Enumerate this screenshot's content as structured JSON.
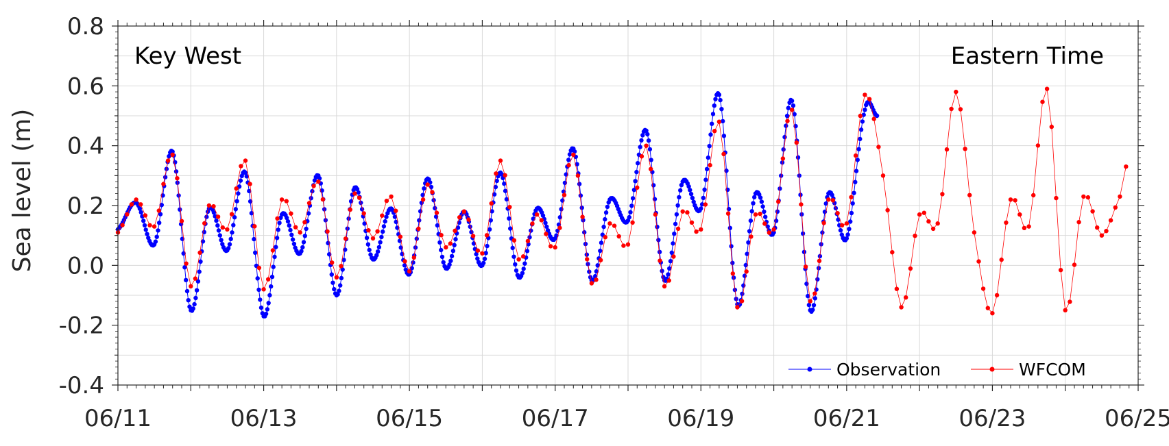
{
  "chart_data": {
    "type": "line",
    "title": "",
    "xlabel": "",
    "ylabel": "Sea level (m)",
    "annotations": {
      "left": "Key West",
      "right": "Eastern Time"
    },
    "x_ticks": [
      "06/11",
      "06/13",
      "06/15",
      "06/17",
      "06/19",
      "06/21",
      "06/23",
      "06/25"
    ],
    "x_tick_days": [
      11,
      13,
      15,
      17,
      19,
      21,
      23,
      25
    ],
    "xlim": [
      "06/11",
      "06/25"
    ],
    "y_ticks": [
      "-0.4",
      "-0.2",
      "0.0",
      "0.2",
      "0.4",
      "0.6",
      "0.8"
    ],
    "y_tick_values": [
      -0.4,
      -0.2,
      0.0,
      0.2,
      0.4,
      0.6,
      0.8
    ],
    "ylim": [
      -0.4,
      0.8
    ],
    "grid": true,
    "legend_position": "bottom-right",
    "colors": {
      "observation": "#0000ff",
      "wfcom": "#ff0000",
      "grid": "#d9d9d9",
      "axis": "#262626"
    },
    "series": [
      {
        "name": "Observation",
        "x": [
          "06/11 00:00",
          "06/11 06:00",
          "06/11 12:00",
          "06/11 18:00",
          "06/12 00:00",
          "06/12 06:00",
          "06/12 12:00",
          "06/12 18:00",
          "06/13 00:00",
          "06/13 06:00",
          "06/13 12:00",
          "06/13 18:00",
          "06/14 00:00",
          "06/14 06:00",
          "06/14 12:00",
          "06/14 18:00",
          "06/15 00:00",
          "06/15 06:00",
          "06/15 12:00",
          "06/15 18:00",
          "06/16 00:00",
          "06/16 06:00",
          "06/16 12:00",
          "06/16 18:00",
          "06/17 00:00",
          "06/17 06:00",
          "06/17 12:00",
          "06/17 18:00",
          "06/18 00:00",
          "06/18 06:00",
          "06/18 12:00",
          "06/18 18:00",
          "06/19 00:00",
          "06/19 06:00",
          "06/19 12:00",
          "06/19 18:00",
          "06/20 00:00",
          "06/20 06:00",
          "06/20 12:00",
          "06/20 18:00",
          "06/21 00:00",
          "06/21 06:00",
          "06/21 10:00"
        ],
        "values": [
          0.12,
          0.21,
          0.07,
          0.38,
          -0.15,
          0.19,
          0.05,
          0.31,
          -0.17,
          0.17,
          0.04,
          0.3,
          -0.1,
          0.26,
          0.02,
          0.19,
          -0.03,
          0.29,
          -0.01,
          0.18,
          0.0,
          0.31,
          -0.04,
          0.19,
          0.09,
          0.39,
          -0.05,
          0.22,
          0.15,
          0.45,
          -0.05,
          0.28,
          0.19,
          0.57,
          -0.13,
          0.24,
          0.11,
          0.55,
          -0.15,
          0.24,
          0.09,
          0.52,
          0.5
        ]
      },
      {
        "name": "WFCOM",
        "x": [
          "06/11 00:00",
          "06/11 06:00",
          "06/11 12:00",
          "06/11 18:00",
          "06/12 00:00",
          "06/12 06:00",
          "06/12 12:00",
          "06/12 18:00",
          "06/13 00:00",
          "06/13 06:00",
          "06/13 12:00",
          "06/13 18:00",
          "06/14 00:00",
          "06/14 06:00",
          "06/14 12:00",
          "06/14 18:00",
          "06/15 00:00",
          "06/15 06:00",
          "06/15 12:00",
          "06/15 18:00",
          "06/16 00:00",
          "06/16 06:00",
          "06/16 12:00",
          "06/16 18:00",
          "06/17 00:00",
          "06/17 06:00",
          "06/17 12:00",
          "06/17 18:00",
          "06/18 00:00",
          "06/18 06:00",
          "06/18 12:00",
          "06/18 18:00",
          "06/19 00:00",
          "06/19 06:00",
          "06/19 12:00",
          "06/19 18:00",
          "06/20 00:00",
          "06/20 06:00",
          "06/20 12:00",
          "06/20 18:00",
          "06/21 00:00",
          "06/21 06:00",
          "06/21 12:00",
          "06/21 18:00",
          "06/22 00:00",
          "06/22 06:00",
          "06/22 12:00",
          "06/22 18:00",
          "06/23 00:00",
          "06/23 06:00",
          "06/23 12:00",
          "06/23 18:00",
          "06/24 00:00",
          "06/24 06:00",
          "06/24 12:00",
          "06/24 18:00",
          "06/24 20:00"
        ],
        "values": [
          0.11,
          0.22,
          0.13,
          0.37,
          -0.07,
          0.2,
          0.12,
          0.35,
          -0.08,
          0.22,
          0.11,
          0.28,
          -0.04,
          0.24,
          0.09,
          0.23,
          -0.02,
          0.27,
          0.06,
          0.18,
          0.04,
          0.35,
          0.02,
          0.17,
          0.06,
          0.37,
          -0.06,
          0.14,
          0.07,
          0.4,
          -0.07,
          0.18,
          0.12,
          0.48,
          -0.14,
          0.17,
          0.12,
          0.52,
          -0.12,
          0.22,
          0.14,
          0.57,
          0.3,
          -0.14,
          0.17,
          0.14,
          0.58,
          0.11,
          -0.16,
          0.22,
          0.13,
          0.59,
          -0.15,
          0.23,
          0.1,
          0.23,
          0.33
        ]
      }
    ]
  }
}
